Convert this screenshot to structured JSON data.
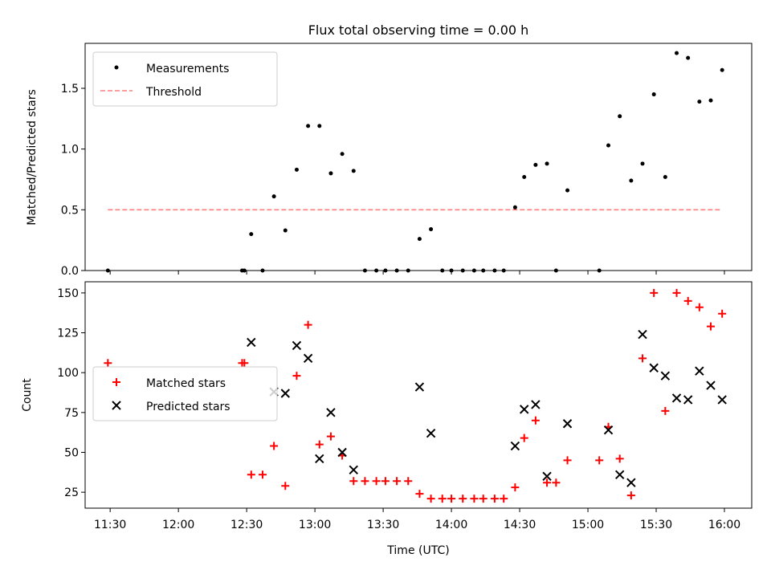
{
  "chart_data": [
    {
      "type": "scatter",
      "title": "Flux total observing time = 0.00 h",
      "xlabel": "",
      "ylabel": "Matched/Predicted stars",
      "xlim": [
        "11:19",
        "16:12"
      ],
      "ylim": [
        0,
        1.87
      ],
      "yticks": [
        0.0,
        0.5,
        1.0,
        1.5
      ],
      "yticklabels": [
        "0.0",
        "0.5",
        "1.0",
        "1.5"
      ],
      "legend_position": "top-left",
      "threshold": {
        "name": "Threshold",
        "y": 0.5,
        "x_range": [
          "11:29",
          "15:59"
        ],
        "color": "#ff7f7f"
      },
      "series": [
        {
          "name": "Measurements",
          "color": "#000000",
          "marker": "dot",
          "points": [
            [
              "11:29",
              0.0
            ],
            [
              "12:28",
              0.0
            ],
            [
              "12:29",
              0.0
            ],
            [
              "12:32",
              0.3
            ],
            [
              "12:37",
              0.0
            ],
            [
              "12:42",
              0.61
            ],
            [
              "12:47",
              0.33
            ],
            [
              "12:52",
              0.83
            ],
            [
              "12:57",
              1.19
            ],
            [
              "13:02",
              1.19
            ],
            [
              "13:07",
              0.8
            ],
            [
              "13:12",
              0.96
            ],
            [
              "13:17",
              0.82
            ],
            [
              "13:22",
              0.0
            ],
            [
              "13:27",
              0.0
            ],
            [
              "13:31",
              0.0
            ],
            [
              "13:36",
              0.0
            ],
            [
              "13:41",
              0.0
            ],
            [
              "13:46",
              0.26
            ],
            [
              "13:51",
              0.34
            ],
            [
              "13:56",
              0.0
            ],
            [
              "14:00",
              0.0
            ],
            [
              "14:05",
              0.0
            ],
            [
              "14:10",
              0.0
            ],
            [
              "14:14",
              0.0
            ],
            [
              "14:19",
              0.0
            ],
            [
              "14:23",
              0.0
            ],
            [
              "14:28",
              0.52
            ],
            [
              "14:32",
              0.77
            ],
            [
              "14:37",
              0.87
            ],
            [
              "14:42",
              0.88
            ],
            [
              "14:46",
              0.0
            ],
            [
              "14:51",
              0.66
            ],
            [
              "15:05",
              0.0
            ],
            [
              "15:09",
              1.03
            ],
            [
              "15:14",
              1.27
            ],
            [
              "15:19",
              0.74
            ],
            [
              "15:24",
              0.88
            ],
            [
              "15:29",
              1.45
            ],
            [
              "15:34",
              0.77
            ],
            [
              "15:39",
              1.79
            ],
            [
              "15:44",
              1.75
            ],
            [
              "15:49",
              1.39
            ],
            [
              "15:54",
              1.4
            ],
            [
              "15:59",
              1.65
            ]
          ]
        }
      ]
    },
    {
      "type": "scatter",
      "title": "",
      "xlabel": "Time (UTC)",
      "ylabel": "Count",
      "xlim": [
        "11:19",
        "16:12"
      ],
      "ylim": [
        15,
        157
      ],
      "yticks": [
        25,
        50,
        75,
        100,
        125,
        150
      ],
      "yticklabels": [
        "25",
        "50",
        "75",
        "100",
        "125",
        "150"
      ],
      "xticks": [
        "11:30",
        "12:00",
        "12:30",
        "13:00",
        "13:30",
        "14:00",
        "14:30",
        "15:00",
        "15:30",
        "16:00"
      ],
      "xticklabels": [
        "11:30",
        "12:00",
        "12:30",
        "13:00",
        "13:30",
        "14:00",
        "14:30",
        "15:00",
        "15:30",
        "16:00"
      ],
      "legend_position": "center-left",
      "series": [
        {
          "name": "Matched stars",
          "color": "#ff0000",
          "marker": "plus",
          "points": [
            [
              "11:29",
              106
            ],
            [
              "12:28",
              106
            ],
            [
              "12:29",
              106
            ],
            [
              "12:32",
              36
            ],
            [
              "12:37",
              36
            ],
            [
              "12:42",
              54
            ],
            [
              "12:47",
              29
            ],
            [
              "12:52",
              98
            ],
            [
              "12:57",
              130
            ],
            [
              "13:02",
              55
            ],
            [
              "13:07",
              60
            ],
            [
              "13:12",
              48
            ],
            [
              "13:17",
              32
            ],
            [
              "13:22",
              32
            ],
            [
              "13:27",
              32
            ],
            [
              "13:31",
              32
            ],
            [
              "13:36",
              32
            ],
            [
              "13:41",
              32
            ],
            [
              "13:46",
              24
            ],
            [
              "13:51",
              21
            ],
            [
              "13:56",
              21
            ],
            [
              "14:00",
              21
            ],
            [
              "14:05",
              21
            ],
            [
              "14:10",
              21
            ],
            [
              "14:14",
              21
            ],
            [
              "14:19",
              21
            ],
            [
              "14:23",
              21
            ],
            [
              "14:28",
              28
            ],
            [
              "14:32",
              59
            ],
            [
              "14:37",
              70
            ],
            [
              "14:42",
              31
            ],
            [
              "14:46",
              31
            ],
            [
              "14:51",
              45
            ],
            [
              "15:05",
              45
            ],
            [
              "15:09",
              66
            ],
            [
              "15:14",
              46
            ],
            [
              "15:19",
              23
            ],
            [
              "15:24",
              109
            ],
            [
              "15:29",
              150
            ],
            [
              "15:34",
              76
            ],
            [
              "15:39",
              150
            ],
            [
              "15:44",
              145
            ],
            [
              "15:49",
              141
            ],
            [
              "15:54",
              129
            ],
            [
              "15:59",
              137
            ]
          ]
        },
        {
          "name": "Predicted stars",
          "color": "#000000",
          "marker": "x",
          "points": [
            [
              "12:32",
              119
            ],
            [
              "12:42",
              88
            ],
            [
              "12:47",
              87
            ],
            [
              "12:52",
              117
            ],
            [
              "12:57",
              109
            ],
            [
              "13:02",
              46
            ],
            [
              "13:07",
              75
            ],
            [
              "13:12",
              50
            ],
            [
              "13:17",
              39
            ],
            [
              "13:46",
              91
            ],
            [
              "13:51",
              62
            ],
            [
              "14:28",
              54
            ],
            [
              "14:32",
              77
            ],
            [
              "14:37",
              80
            ],
            [
              "14:42",
              35
            ],
            [
              "14:51",
              68
            ],
            [
              "15:09",
              64
            ],
            [
              "15:14",
              36
            ],
            [
              "15:19",
              31
            ],
            [
              "15:24",
              124
            ],
            [
              "15:29",
              103
            ],
            [
              "15:34",
              98
            ],
            [
              "15:39",
              84
            ],
            [
              "15:44",
              83
            ],
            [
              "15:49",
              101
            ],
            [
              "15:54",
              92
            ],
            [
              "15:59",
              83
            ]
          ]
        }
      ]
    }
  ]
}
